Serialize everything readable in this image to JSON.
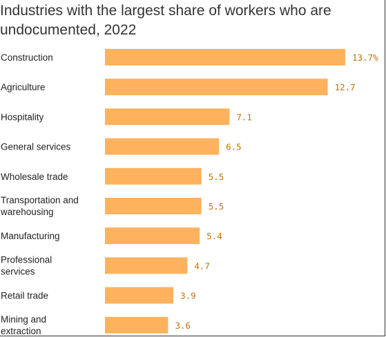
{
  "chart_data": {
    "type": "bar",
    "orientation": "horizontal",
    "title": "Industries with the largest share of workers who are undocumented, 2022",
    "categories": [
      "Construction",
      "Agriculture",
      "Hospitality",
      "General services",
      "Wholesale trade",
      "Transportation and warehousing",
      "Manufacturing",
      "Professional services",
      "Retail trade",
      "Mining and extraction"
    ],
    "values": [
      13.7,
      12.7,
      7.1,
      6.5,
      5.5,
      5.5,
      5.4,
      4.7,
      3.9,
      3.6
    ],
    "value_labels": [
      "13.7%",
      "12.7",
      "7.1",
      "6.5",
      "5.5",
      "5.5",
      "5.4",
      "4.7",
      "3.9",
      "3.6"
    ],
    "xlabel": "",
    "ylabel": "",
    "grid": false,
    "legend": "none",
    "colors": {
      "bar": "#ffb25e",
      "value_text": "#c2700a",
      "label_text": "#222222"
    }
  }
}
